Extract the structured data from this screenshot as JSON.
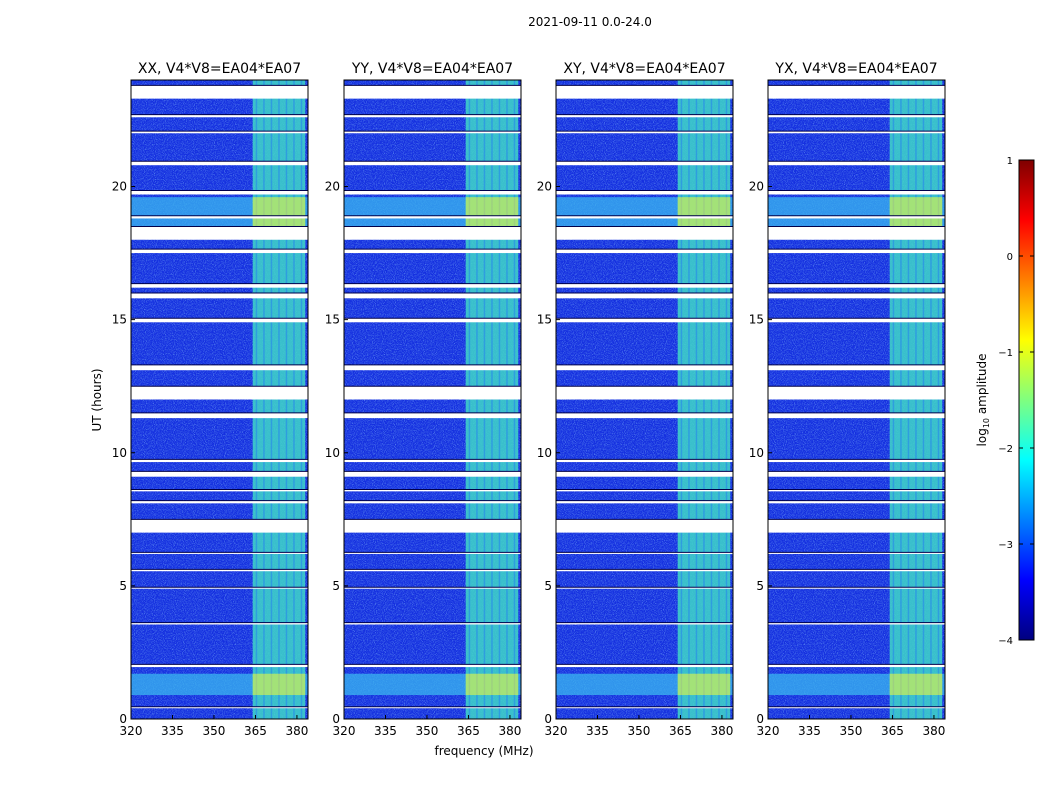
{
  "figure": {
    "suptitle": "2021-09-11 0.0-24.0",
    "ylabel": "UT (hours)",
    "xlabel": "frequency (MHz)"
  },
  "chart_data": {
    "type": "heatmap",
    "panels": [
      {
        "title": "XX, V4*V8=EA04*EA07"
      },
      {
        "title": "YY, V4*V8=EA04*EA07"
      },
      {
        "title": "XY, V4*V8=EA04*EA07"
      },
      {
        "title": "YX, V4*V8=EA04*EA07"
      }
    ],
    "x_range": [
      320,
      384
    ],
    "x_ticks": [
      320,
      335,
      350,
      365,
      380
    ],
    "y_range": [
      0,
      24
    ],
    "y_ticks": [
      0,
      5,
      10,
      15,
      20
    ],
    "colorbar": {
      "label": "log10 amplitude",
      "label_base": "log",
      "label_sub": "10",
      "label_rest": " amplitude",
      "range": [
        -4,
        1
      ],
      "ticks": [
        "1",
        "0",
        "−1",
        "−2",
        "−3",
        "−4"
      ]
    },
    "rfi_band_mhz": [
      364,
      383
    ],
    "gaps_ut": [
      [
        0.42,
        0.46
      ],
      [
        1.95,
        2.05
      ],
      [
        3.55,
        3.62
      ],
      [
        4.9,
        4.95
      ],
      [
        5.55,
        5.62
      ],
      [
        6.2,
        6.26
      ],
      [
        7.0,
        7.5
      ],
      [
        8.1,
        8.2
      ],
      [
        8.55,
        8.62
      ],
      [
        9.1,
        9.3
      ],
      [
        9.65,
        9.75
      ],
      [
        11.3,
        11.5
      ],
      [
        12.0,
        12.5
      ],
      [
        13.1,
        13.3
      ],
      [
        14.9,
        15.05
      ],
      [
        15.8,
        16.0
      ],
      [
        16.2,
        16.35
      ],
      [
        17.5,
        17.65
      ],
      [
        18.0,
        18.5
      ],
      [
        18.8,
        18.9
      ],
      [
        19.7,
        19.85
      ],
      [
        20.8,
        20.95
      ],
      [
        22.0,
        22.08
      ],
      [
        22.6,
        22.7
      ],
      [
        23.3,
        23.8
      ]
    ],
    "bright_periods_ut": [
      [
        0.9,
        1.7
      ],
      [
        18.5,
        19.6
      ]
    ]
  }
}
